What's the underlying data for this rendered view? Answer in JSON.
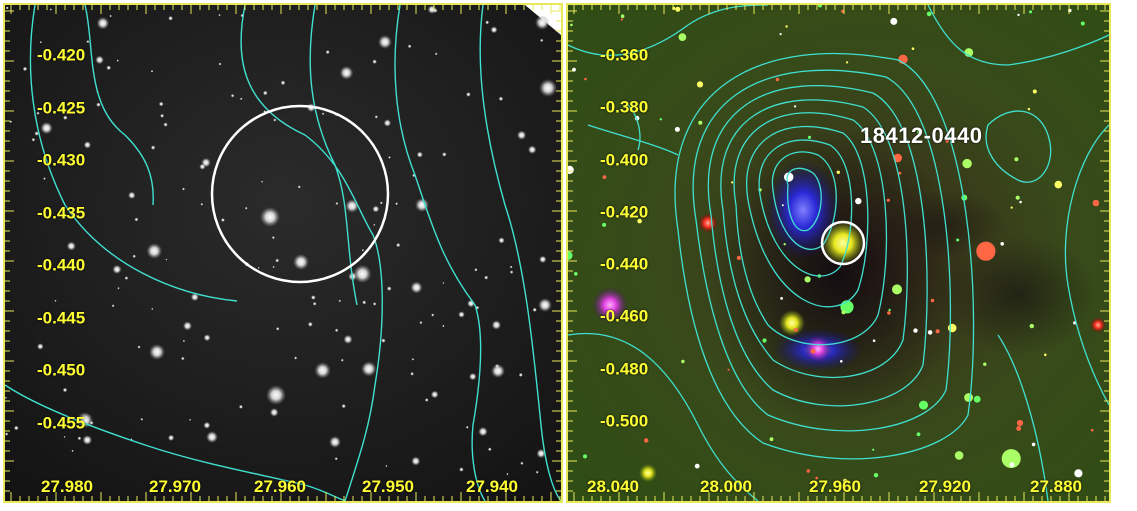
{
  "left_panel": {
    "y_ticks": [
      "-0.420",
      "-0.425",
      "-0.430",
      "-0.435",
      "-0.440",
      "-0.445",
      "-0.450",
      "-0.455"
    ],
    "x_ticks": [
      "27.980",
      "27.970",
      "27.960",
      "27.950",
      "27.940"
    ]
  },
  "right_panel": {
    "source_label": "18412-0440",
    "y_ticks": [
      "-0.360",
      "-0.380",
      "-0.400",
      "-0.420",
      "-0.440",
      "-0.460",
      "-0.480",
      "-0.500"
    ],
    "x_ticks": [
      "28.040",
      "28.000",
      "27.960",
      "27.920",
      "27.880"
    ]
  },
  "colors": {
    "frame": "#e8e85a",
    "tick_labels": "#ffff33",
    "contours": "#40e0d0",
    "circle": "#ffffff"
  }
}
